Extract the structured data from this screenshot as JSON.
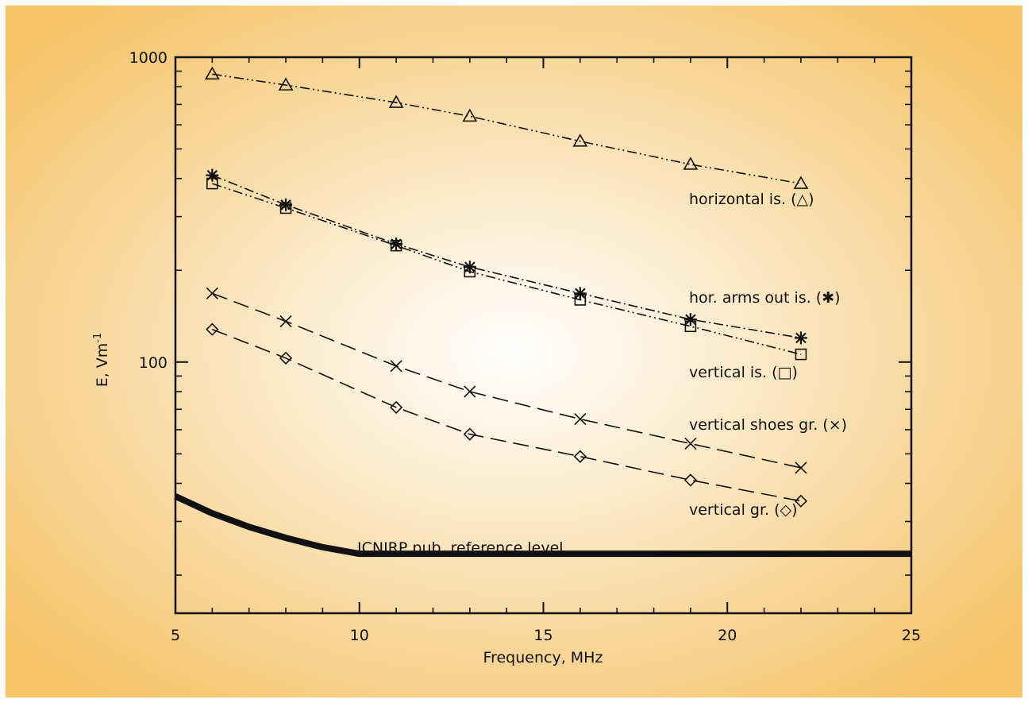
{
  "colors": {
    "panel_center": "#ffffff",
    "panel_edge": "#f5c266",
    "page_background": "#ffffff",
    "ink": "#111111"
  },
  "chart_data": {
    "type": "line",
    "xlabel": "Frequency, MHz",
    "ylabel_main": "E, Vm",
    "ylabel_exponent": "-1",
    "xlim": [
      5,
      25
    ],
    "ylim": [
      15,
      1000
    ],
    "y_scale": "log",
    "x_ticks": [
      "5",
      "10",
      "15",
      "20",
      "25"
    ],
    "y_tick_labels": [
      "100",
      "1000"
    ],
    "grid": false,
    "x": [
      6,
      8,
      11,
      13,
      16,
      19,
      22
    ],
    "series": [
      {
        "name": "horizontal is. (△)",
        "marker": "triangle-icon",
        "line_style": "dash-dot-dot",
        "values": [
          880,
          810,
          710,
          640,
          530,
          445,
          385
        ]
      },
      {
        "name": "hor. arms out is. (✱)",
        "marker": "asterisk-icon",
        "line_style": "dash-dot",
        "values": [
          410,
          328,
          244,
          205,
          168,
          138,
          120
        ]
      },
      {
        "name": "vertical is. (□)",
        "marker": "square-icon",
        "line_style": "dash-dot-dot",
        "values": [
          385,
          320,
          241,
          198,
          160,
          131,
          106
        ]
      },
      {
        "name": "vertical shoes gr. (×)",
        "marker": "x-icon",
        "line_style": "long-dash",
        "values": [
          168,
          136,
          97,
          80,
          65,
          54,
          45
        ]
      },
      {
        "name": "vertical gr. (◇)",
        "marker": "diamond-icon",
        "line_style": "long-dash",
        "values": [
          128,
          103,
          71,
          58,
          49,
          41,
          35
        ]
      }
    ],
    "reference": {
      "name": "ICNIRP pub. reference level",
      "x": [
        5,
        6,
        7,
        8,
        9,
        10,
        25
      ],
      "values": [
        36.3,
        31.9,
        28.8,
        26.5,
        24.7,
        23.5,
        23.5
      ]
    }
  }
}
